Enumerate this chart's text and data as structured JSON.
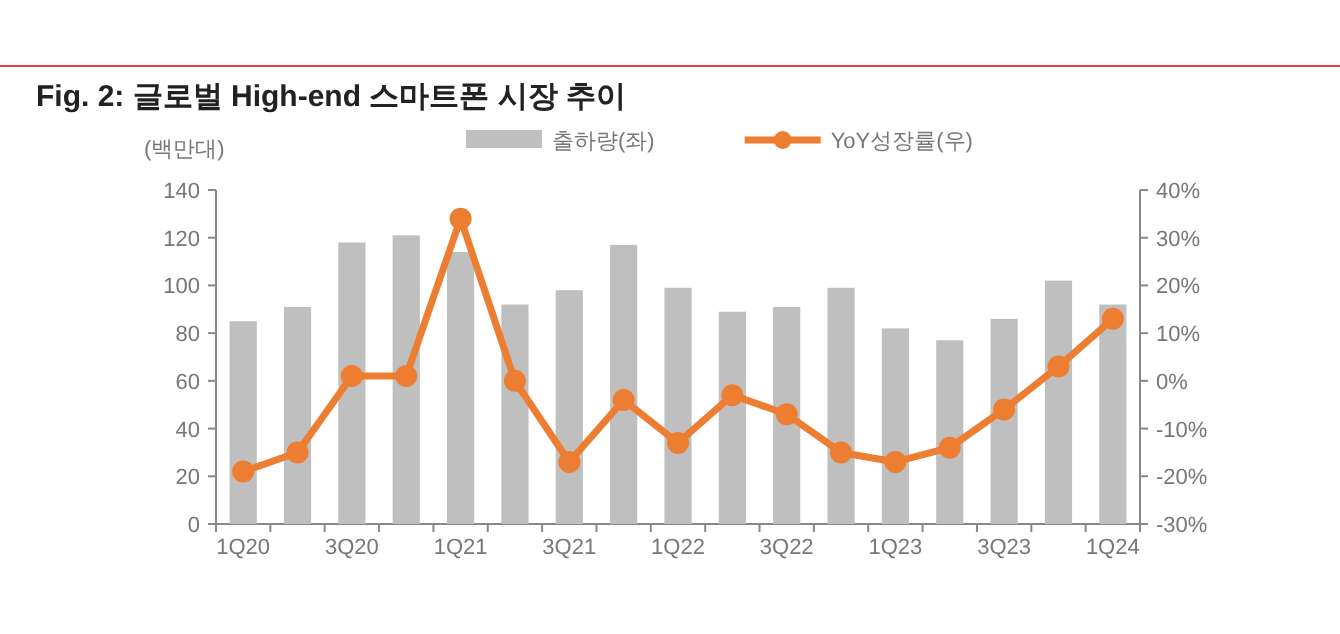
{
  "chart_data": {
    "type": "bar",
    "title": "Fig. 2: 글로벌 High-end 스마트폰 시장 추이",
    "ylabel": "(백만대)",
    "categories": [
      "1Q20",
      null,
      "3Q20",
      null,
      "1Q21",
      null,
      "3Q21",
      null,
      "1Q22",
      null,
      "3Q22",
      null,
      "1Q23",
      null,
      "3Q23",
      null,
      "1Q24"
    ],
    "series": [
      {
        "name": "출하량(좌)",
        "color": "#bfbfbf",
        "values": [
          85,
          91,
          118,
          121,
          114,
          92,
          98,
          117,
          99,
          89,
          91,
          99,
          82,
          77,
          86,
          102,
          92
        ]
      },
      {
        "name": "YoY성장률(우)",
        "type": "line",
        "axis": "y2",
        "color": "#ed7d31",
        "values": [
          -19,
          -15,
          1,
          1,
          34,
          0,
          -17,
          -4,
          -13,
          -3,
          -7,
          -15,
          -17,
          -14,
          -6,
          3,
          13
        ]
      }
    ],
    "ylim": [
      0,
      140
    ],
    "yticks": [
      0,
      20,
      40,
      60,
      80,
      100,
      120,
      140
    ],
    "y2lim": [
      -30,
      40
    ],
    "y2ticks": [
      {
        "value": -30,
        "label": "-30%"
      },
      {
        "value": -20,
        "label": "-20%"
      },
      {
        "value": -10,
        "label": "-10%"
      },
      {
        "value": 0,
        "label": "0%"
      },
      {
        "value": 10,
        "label": "10%"
      },
      {
        "value": 20,
        "label": "20%"
      },
      {
        "value": 30,
        "label": "30%"
      },
      {
        "value": 40,
        "label": "40%"
      }
    ],
    "legend": "top",
    "marker": "circle",
    "line_style": "solid",
    "grid": false
  }
}
